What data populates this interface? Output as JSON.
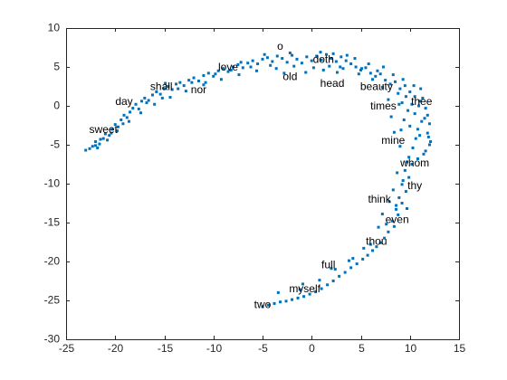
{
  "chart_data": {
    "type": "scatter",
    "title": "",
    "xlabel": "",
    "ylabel": "",
    "xlim": [
      -25,
      15
    ],
    "ylim": [
      -30,
      10
    ],
    "grid": false,
    "x_ticks": [
      -25,
      -20,
      -15,
      -10,
      -5,
      0,
      5,
      10,
      15
    ],
    "y_ticks": [
      -30,
      -25,
      -20,
      -15,
      -10,
      -5,
      0,
      5,
      10
    ],
    "marker_color": "#0072BD",
    "series": [
      {
        "points": [
          [
            -23,
            -5.7
          ],
          [
            -22.3,
            -5.2
          ],
          [
            -22,
            -4.6
          ],
          [
            -21.6,
            -4.9
          ],
          [
            -21.8,
            -5.4
          ],
          [
            -21.2,
            -4.2
          ],
          [
            -21,
            -3.6
          ],
          [
            -20.6,
            -3.8
          ],
          [
            -20.3,
            -3
          ],
          [
            -20,
            -2.4
          ],
          [
            -19.7,
            -2.7
          ],
          [
            -19.4,
            -1.8
          ],
          [
            -19.1,
            -1.2
          ],
          [
            -18.8,
            -1.5
          ],
          [
            -18.5,
            -0.8
          ],
          [
            -18.2,
            -0.3
          ],
          [
            -17.9,
            0.2
          ],
          [
            -17.6,
            -0.4
          ],
          [
            -17.3,
            0.6
          ],
          [
            -17,
            1
          ],
          [
            -16.6,
            0.7
          ],
          [
            -16.2,
            1.4
          ],
          [
            -15.8,
            1.8
          ],
          [
            -15.4,
            1.5
          ],
          [
            -15,
            2.2
          ],
          [
            -14.6,
            2.5
          ],
          [
            -14.2,
            2.1
          ],
          [
            -13.8,
            2.8
          ],
          [
            -13.4,
            3
          ],
          [
            -13,
            2.6
          ],
          [
            -12.5,
            3.3
          ],
          [
            -12,
            3.6
          ],
          [
            -11.5,
            3.2
          ],
          [
            -11,
            3.9
          ],
          [
            -10.5,
            4.2
          ],
          [
            -10,
            3.8
          ],
          [
            -9.5,
            4.5
          ],
          [
            -9,
            4.8
          ],
          [
            -8.5,
            4.4
          ],
          [
            -8,
            5
          ],
          [
            -7.5,
            5.3
          ],
          [
            -7,
            4.9
          ],
          [
            -6.5,
            5.5
          ],
          [
            -6,
            5.8
          ],
          [
            -5.5,
            5.4
          ],
          [
            -5,
            6
          ],
          [
            -4.5,
            6.2
          ],
          [
            -4,
            5.7
          ],
          [
            -3.5,
            6.4
          ],
          [
            -3,
            6.1
          ],
          [
            -2.5,
            5.6
          ],
          [
            -2,
            6.5
          ],
          [
            -1.5,
            6
          ],
          [
            -1,
            5.5
          ],
          [
            -0.5,
            6.3
          ],
          [
            0,
            5.8
          ],
          [
            0.5,
            6.4
          ],
          [
            1,
            5.9
          ],
          [
            1.5,
            6.6
          ],
          [
            2,
            6.1
          ],
          [
            2.5,
            5.7
          ],
          [
            3,
            6.3
          ],
          [
            3.5,
            5.8
          ],
          [
            4,
            5.4
          ],
          [
            4.5,
            5
          ],
          [
            5,
            4.6
          ],
          [
            5.5,
            4.9
          ],
          [
            6,
            4.2
          ],
          [
            6.5,
            3.8
          ],
          [
            7,
            4.1
          ],
          [
            7.5,
            3.3
          ],
          [
            8,
            2.8
          ],
          [
            8.5,
            3.1
          ],
          [
            9,
            2.2
          ],
          [
            9.5,
            2.6
          ],
          [
            10,
            1.8
          ],
          [
            10.5,
            1.2
          ],
          [
            11,
            0.6
          ],
          [
            11.3,
            1
          ],
          [
            11.6,
            -0.3
          ],
          [
            11.8,
            -1.2
          ],
          [
            12,
            -2.3
          ],
          [
            11.8,
            -3.5
          ],
          [
            12.1,
            -4.6
          ],
          [
            11.6,
            -5.8
          ],
          [
            11.9,
            -4
          ],
          [
            11.2,
            -2
          ],
          [
            10.8,
            -3
          ],
          [
            10.5,
            -1
          ],
          [
            10.2,
            0.2
          ],
          [
            9.8,
            -0.6
          ],
          [
            9.6,
            1.2
          ],
          [
            9.2,
            0.4
          ],
          [
            8.8,
            1.6
          ],
          [
            9.4,
            -1.8
          ],
          [
            10,
            -2.6
          ],
          [
            10.6,
            -4.2
          ],
          [
            10.3,
            -5.4
          ],
          [
            9.9,
            -6.6
          ],
          [
            10.2,
            -7.5
          ],
          [
            9.5,
            -8.3
          ],
          [
            9.9,
            -9.2
          ],
          [
            9.2,
            -10.1
          ],
          [
            9.6,
            -11
          ],
          [
            8.9,
            -11.8
          ],
          [
            9.2,
            -12.5
          ],
          [
            8.6,
            -13.3
          ],
          [
            8.8,
            -14
          ],
          [
            8.2,
            -14.8
          ],
          [
            8.4,
            -15.5
          ],
          [
            7.8,
            -16.2
          ],
          [
            7.4,
            -17
          ],
          [
            7,
            -17.6
          ],
          [
            6.6,
            -18.1
          ],
          [
            6.2,
            -18.6
          ],
          [
            5.7,
            -19.2
          ],
          [
            5.2,
            -19.7
          ],
          [
            4.6,
            -20.3
          ],
          [
            4,
            -20.8
          ],
          [
            3.4,
            -21.4
          ],
          [
            2.8,
            -21.9
          ],
          [
            2.2,
            -22.5
          ],
          [
            1.6,
            -23
          ],
          [
            1,
            -23.5
          ],
          [
            0.4,
            -23.9
          ],
          [
            -0.2,
            -24.2
          ],
          [
            -0.8,
            -24.5
          ],
          [
            -1.4,
            -24.7
          ],
          [
            -2,
            -24.9
          ],
          [
            -2.6,
            -25.1
          ],
          [
            -3.2,
            -25.2
          ],
          [
            -3.8,
            -25.4
          ],
          [
            -4.4,
            -25.6
          ],
          [
            -5,
            -25.8
          ],
          [
            -1.2,
            -23.6
          ],
          [
            0.8,
            -22.4
          ],
          [
            2.4,
            -21
          ],
          [
            4.2,
            -19.6
          ],
          [
            6,
            -17.8
          ],
          [
            7.6,
            -15.2
          ],
          [
            8.6,
            -12.8
          ],
          [
            9.3,
            -9.6
          ],
          [
            9.7,
            -7.2
          ],
          [
            8.7,
            -8.6
          ],
          [
            9,
            -5.2
          ],
          [
            8.4,
            -3.4
          ],
          [
            8.1,
            -1.4
          ],
          [
            7.8,
            0.8
          ],
          [
            7.2,
            2.4
          ],
          [
            6.2,
            3.4
          ],
          [
            4.8,
            4.1
          ],
          [
            3.2,
            4.8
          ],
          [
            1.8,
            5.1
          ],
          [
            0.2,
            4.9
          ],
          [
            -1.8,
            5.1
          ],
          [
            -3.6,
            4.8
          ],
          [
            -5.6,
            4.5
          ],
          [
            -7.4,
            4
          ],
          [
            -9.2,
            3.4
          ],
          [
            -11,
            2.7
          ],
          [
            -12.8,
            1.9
          ],
          [
            -14.4,
            1.1
          ],
          [
            -16,
            0.2
          ],
          [
            -17.4,
            -0.9
          ],
          [
            -18.6,
            -2
          ],
          [
            -19.8,
            -3.2
          ],
          [
            -20.8,
            -4.4
          ],
          [
            -22,
            -5.1
          ],
          [
            -2.8,
            4.2
          ],
          [
            -0.6,
            4.3
          ],
          [
            1.2,
            4.6
          ],
          [
            2.6,
            4.3
          ],
          [
            11.4,
            -6.2
          ],
          [
            10.8,
            -6.8
          ],
          [
            11,
            -3.8
          ],
          [
            8.3,
            -10.8
          ],
          [
            7.9,
            -12.3
          ],
          [
            7.2,
            -13.9
          ],
          [
            6.8,
            -15.6
          ],
          [
            5.3,
            -18.3
          ],
          [
            3.8,
            -19.9
          ],
          [
            2,
            -20.9
          ],
          [
            -0.9,
            -22.9
          ],
          [
            -3.4,
            -24
          ],
          [
            11.5,
            -1.6
          ],
          [
            10.9,
            0
          ],
          [
            12,
            -5
          ],
          [
            9.1,
            -3.1
          ],
          [
            8.9,
            0.2
          ],
          [
            9.7,
            -13.2
          ],
          [
            5.1,
            4.8
          ],
          [
            6.7,
            4.5
          ],
          [
            2.9,
            5
          ],
          [
            -4.2,
            5.2
          ],
          [
            -6.2,
            5
          ],
          [
            -8.2,
            4.6
          ],
          [
            -10.8,
            3
          ],
          [
            -13.6,
            2.2
          ],
          [
            -15.2,
            1
          ],
          [
            -16.8,
            0.4
          ],
          [
            -19.2,
            -2.3
          ],
          [
            -20.4,
            -3.5
          ],
          [
            -21.5,
            -4.3
          ],
          [
            -22.6,
            -5.5
          ],
          [
            -14.9,
            2.9
          ],
          [
            -12.2,
            3
          ],
          [
            -9.8,
            4.1
          ],
          [
            -7.2,
            5.6
          ],
          [
            -4.8,
            6.6
          ],
          [
            -2.2,
            6.8
          ],
          [
            0.9,
            6.9
          ],
          [
            2.2,
            6.7
          ],
          [
            3.6,
            6.5
          ],
          [
            4.4,
            6.1
          ],
          [
            5.8,
            5.4
          ],
          [
            7.3,
            5
          ],
          [
            8.3,
            4
          ],
          [
            9.3,
            3.4
          ],
          [
            10.4,
            2.6
          ],
          [
            11.1,
            2.2
          ]
        ]
      }
    ],
    "annotations": [
      {
        "text": "o",
        "x": -3.2,
        "y": 7.6
      },
      {
        "text": "doth",
        "x": 1.2,
        "y": 5.9
      },
      {
        "text": "love",
        "x": -8.5,
        "y": 4.9
      },
      {
        "text": "old",
        "x": -2.2,
        "y": 3.7
      },
      {
        "text": "head",
        "x": 2.1,
        "y": 2.8
      },
      {
        "text": "beauty",
        "x": 6.6,
        "y": 2.4
      },
      {
        "text": "shall",
        "x": -15.3,
        "y": 2.4
      },
      {
        "text": "nor",
        "x": -11.5,
        "y": 2
      },
      {
        "text": "thee",
        "x": 11.2,
        "y": 0.5
      },
      {
        "text": "day",
        "x": -19.1,
        "y": 0.5
      },
      {
        "text": "times",
        "x": 7.3,
        "y": -0.1
      },
      {
        "text": "sweet",
        "x": -21.2,
        "y": -3.1
      },
      {
        "text": "mine",
        "x": 8.3,
        "y": -4.5
      },
      {
        "text": "whom",
        "x": 10.5,
        "y": -7.4
      },
      {
        "text": "thy",
        "x": 10.5,
        "y": -10.3
      },
      {
        "text": "think",
        "x": 6.9,
        "y": -12.1
      },
      {
        "text": "even",
        "x": 8.7,
        "y": -14.7
      },
      {
        "text": "thou",
        "x": 6.6,
        "y": -17.5
      },
      {
        "text": "full",
        "x": 1.7,
        "y": -20.5
      },
      {
        "text": "myself",
        "x": -0.7,
        "y": -23.6
      },
      {
        "text": "two",
        "x": -5,
        "y": -25.6
      }
    ]
  }
}
